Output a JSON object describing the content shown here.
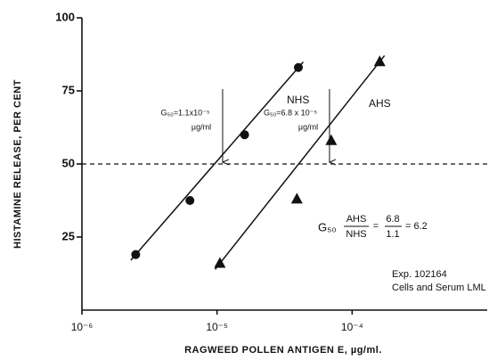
{
  "chart_data": {
    "type": "scatter",
    "xlabel": "RAGWEED POLLEN ANTIGEN E, µg/ml.",
    "ylabel": "HISTAMINE RELEASE, PER CENT",
    "xscale": "log",
    "xlim": [
      1e-06,
      0.001
    ],
    "xticks": [
      {
        "value": 1e-06,
        "label": "10⁻⁶"
      },
      {
        "value": 1e-05,
        "label": "10⁻⁵"
      },
      {
        "value": 0.0001,
        "label": "10⁻⁴"
      }
    ],
    "ylim": [
      0,
      100
    ],
    "yticks": [
      25,
      50,
      75,
      100
    ],
    "reference_line": 50,
    "series": [
      {
        "name": "NHS",
        "marker": "circle",
        "color": "#111111",
        "x": [
          2.5e-06,
          6.3e-06,
          1.6e-05,
          4e-05
        ],
        "values": [
          19,
          37.5,
          60,
          83
        ]
      },
      {
        "name": "AHS",
        "marker": "triangle",
        "color": "#111111",
        "x": [
          1.05e-05,
          3.9e-05,
          7e-05,
          0.00016
        ],
        "values": [
          16,
          38,
          58,
          85
        ]
      }
    ],
    "annotations": [
      {
        "x": 1.1e-05,
        "text": "G₅₀=1.1x10⁻⁵",
        "unit": "µg/ml"
      },
      {
        "x": 6.8e-05,
        "text": "G₅₀=6.8 x 10⁻⁵",
        "unit": "µg/ml"
      }
    ],
    "formula": {
      "symbol": "G₅₀",
      "numerator": "AHS",
      "denominator": "NHS",
      "eq": "=",
      "num_value": "6.8",
      "den_value": "1.1",
      "result": "= 6.2"
    },
    "notes": [
      "Exp. 102164",
      "Cells and Serum LML"
    ]
  }
}
